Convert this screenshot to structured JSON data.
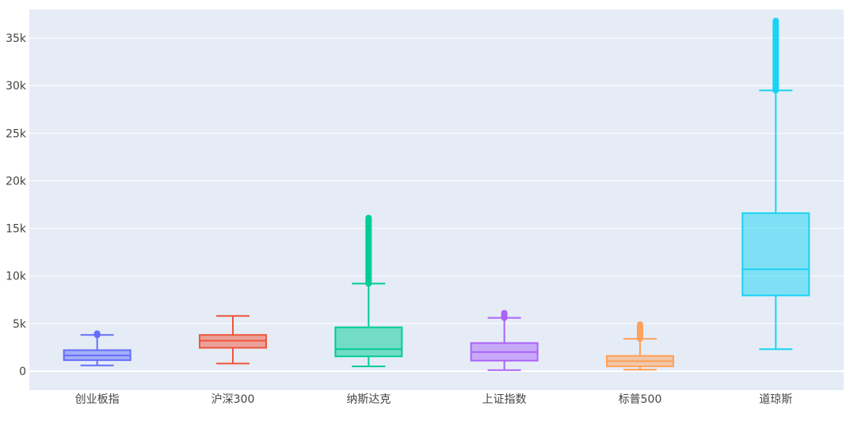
{
  "chart_data": {
    "type": "box",
    "grid": true,
    "legend": "none",
    "ylim": [
      -2000,
      38000
    ],
    "y_ticks": [
      {
        "value": 0,
        "label": "0"
      },
      {
        "value": 5000,
        "label": "5k"
      },
      {
        "value": 10000,
        "label": "10k"
      },
      {
        "value": 15000,
        "label": "15k"
      },
      {
        "value": 20000,
        "label": "20k"
      },
      {
        "value": 25000,
        "label": "25k"
      },
      {
        "value": 30000,
        "label": "30k"
      },
      {
        "value": 35000,
        "label": "35k"
      }
    ],
    "categories": [
      "创业板指",
      "沪深300",
      "纳斯达克",
      "上证指数",
      "标普500",
      "道琼斯"
    ],
    "boxes": [
      {
        "category": "创业板指",
        "color": "#636efa",
        "min": 600,
        "q1": 1150,
        "median": 1650,
        "q3": 2200,
        "max": 3800,
        "outliers_range": [
          3800,
          3950
        ]
      },
      {
        "category": "沪深300",
        "color": "#ef553b",
        "min": 800,
        "q1": 2450,
        "median": 3200,
        "q3": 3800,
        "max": 5800,
        "outliers_range": null
      },
      {
        "category": "纳斯达克",
        "color": "#00cc96",
        "min": 500,
        "q1": 1550,
        "median": 2300,
        "q3": 4600,
        "max": 9200,
        "outliers_range": [
          9200,
          16100
        ]
      },
      {
        "category": "上证指数",
        "color": "#ab63fa",
        "min": 100,
        "q1": 1100,
        "median": 2000,
        "q3": 2950,
        "max": 5600,
        "outliers_range": [
          5600,
          6100
        ]
      },
      {
        "category": "标普500",
        "color": "#ffa15a",
        "min": 150,
        "q1": 500,
        "median": 1050,
        "q3": 1600,
        "max": 3400,
        "outliers_range": [
          3400,
          4900
        ]
      },
      {
        "category": "道琼斯",
        "color": "#19d3f3",
        "min": 2300,
        "q1": 7950,
        "median": 10700,
        "q3": 16600,
        "max": 29500,
        "outliers_range": [
          29500,
          36800
        ]
      }
    ]
  }
}
